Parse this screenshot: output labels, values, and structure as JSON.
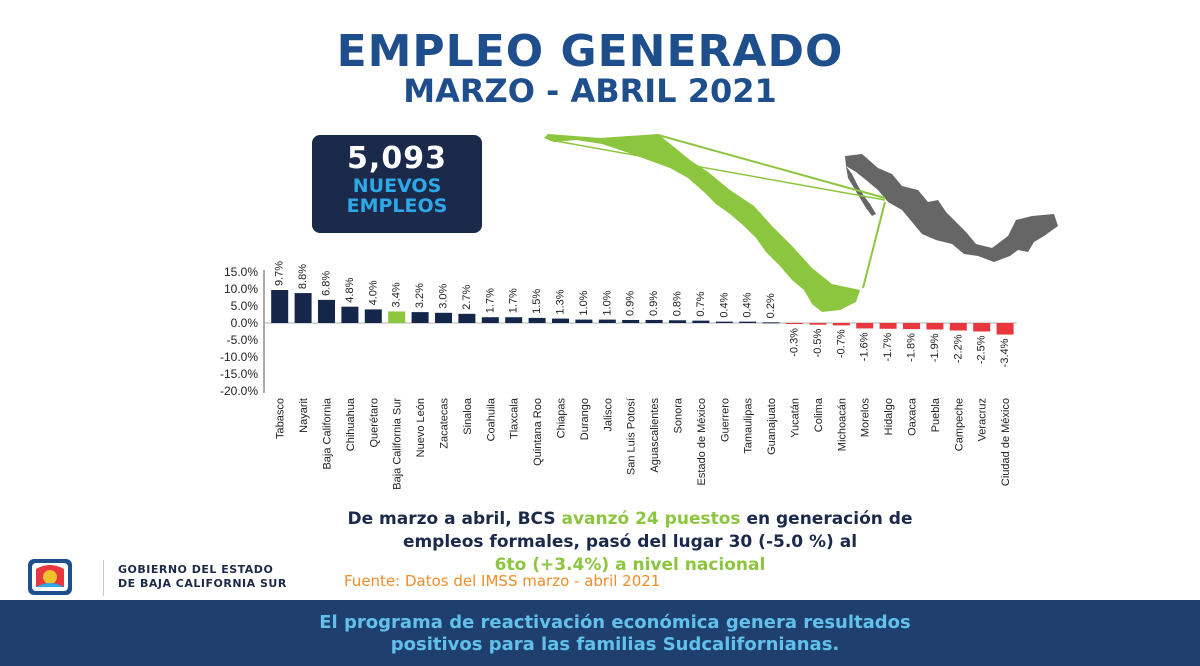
{
  "header": {
    "title": "EMPLEO GENERADO",
    "subtitle": "MARZO - ABRIL 2021"
  },
  "kpi": {
    "value": "5,093",
    "line1": "NUEVOS",
    "line2": "EMPLEOS"
  },
  "colors": {
    "title": "#1f4e8c",
    "positive_bar": "#14274a",
    "highlight_bar": "#8cc63f",
    "negative_bar": "#e8383d",
    "map_mexico": "#666666",
    "map_bcs": "#8cc63f"
  },
  "chart_data": {
    "type": "bar",
    "categories": [
      "Tabasco",
      "Nayarit",
      "Baja California",
      "Chihuahua",
      "Querétaro",
      "Baja California Sur",
      "Nuevo León",
      "Zacatecas",
      "Sinaloa",
      "Coahuila",
      "Tlaxcala",
      "Quintana Roo",
      "Chiapas",
      "Durango",
      "Jalisco",
      "San Luis Potosí",
      "Aguascalientes",
      "Sonora",
      "Estado de México",
      "Guerrero",
      "Tamaulipas",
      "Guanajuato",
      "Yucatán",
      "Colima",
      "Michoacán",
      "Morelos",
      "Hidalgo",
      "Oaxaca",
      "Puebla",
      "Campeche",
      "Veracruz",
      "Ciudad de México"
    ],
    "values": [
      9.7,
      8.8,
      6.8,
      4.8,
      4.0,
      3.4,
      3.2,
      3.0,
      2.7,
      1.7,
      1.7,
      1.5,
      1.3,
      1.0,
      1.0,
      0.9,
      0.9,
      0.8,
      0.7,
      0.4,
      0.4,
      0.2,
      -0.3,
      -0.5,
      -0.7,
      -1.6,
      -1.7,
      -1.8,
      -1.9,
      -2.2,
      -2.5,
      -3.4
    ],
    "data_labels": [
      "9.7%",
      "8.8%",
      "6.8%",
      "4.8%",
      "4.0%",
      "3.4%",
      "3.2%",
      "3.0%",
      "2.7%",
      "1.7%",
      "1.7%",
      "1.5%",
      "1.3%",
      "1.0%",
      "1.0%",
      "0.9%",
      "0.9%",
      "0.8%",
      "0.7%",
      "0.4%",
      "0.4%",
      "0.2%",
      "-0.3%",
      "-0.5%",
      "-0.7%",
      "-1.6%",
      "-1.7%",
      "-1.8%",
      "-1.9%",
      "-2.2%",
      "-2.5%",
      "-3.4%"
    ],
    "highlight": "Baja California Sur",
    "yticks": [
      "15.0%",
      "10.0%",
      "5.0%",
      "0.0%",
      "-5.0%",
      "-10.0%",
      "-15.0%",
      "-20.0%"
    ],
    "ylim": [
      -20,
      15
    ],
    "grid": false,
    "title": "",
    "xlabel": "",
    "ylabel": ""
  },
  "summary": {
    "part1": "De marzo a abril, BCS ",
    "highlight1": "avanzó 24 puestos",
    "part2": " en generación de",
    "line2": "empleos formales, pasó del lugar 30 (-5.0 %) al",
    "highlight2": "6to (+3.4%) a nivel nacional"
  },
  "source": "Fuente: Datos del IMSS marzo - abril 2021",
  "government": {
    "line1": "GOBIERNO DEL ESTADO",
    "line2": "DE BAJA CALIFORNIA SUR"
  },
  "banner": {
    "line1": "El programa de reactivación económica genera resultados",
    "line2": "positivos para las familias Sudcalifornianas."
  }
}
